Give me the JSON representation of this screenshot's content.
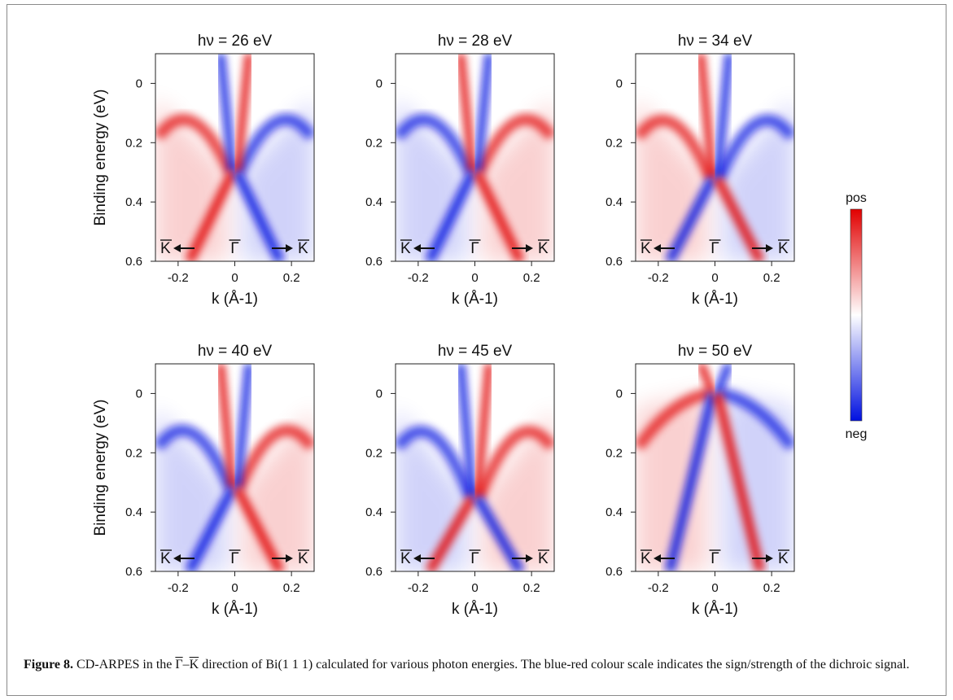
{
  "figure": {
    "caption": {
      "label": "Figure 8.",
      "pre": " CD-ARPES in the ",
      "sym1": "Γ",
      "dash": "–",
      "sym2": "K",
      "post": " direction of Bi(1 1 1) calculated for various photon energies. The blue-red colour scale indicates the sign/strength of the dichroic signal."
    }
  },
  "chart_data": [
    {
      "type": "heatmap",
      "title": "hν = 26 eV",
      "xlabel": "k (Å-1)",
      "ylabel": "Binding energy (eV)",
      "xlim": [
        -0.28,
        0.28
      ],
      "ylim": [
        -0.1,
        0.6
      ],
      "xticks": [
        "-0.2",
        "0",
        "0.2"
      ],
      "yticks": [
        "0",
        "0.2",
        "0.4",
        "0.6"
      ],
      "labels": {
        "left": "K",
        "center": "Γ",
        "right": "K"
      },
      "dirac_point_eV": 0.3,
      "inner_sign": 1,
      "outer_sign": 1
    },
    {
      "type": "heatmap",
      "title": "hν = 28 eV",
      "xlabel": "k (Å-1)",
      "ylabel": "",
      "xlim": [
        -0.28,
        0.28
      ],
      "ylim": [
        -0.1,
        0.6
      ],
      "xticks": [
        "-0.2",
        "0",
        "0.2"
      ],
      "yticks": [
        "0",
        "0.2",
        "0.4",
        "0.6"
      ],
      "labels": {
        "left": "K",
        "center": "Γ",
        "right": "K"
      },
      "dirac_point_eV": 0.3,
      "inner_sign": -1,
      "outer_sign": -1
    },
    {
      "type": "heatmap",
      "title": "hν = 34 eV",
      "xlabel": "k (Å-1)",
      "ylabel": "",
      "xlim": [
        -0.28,
        0.28
      ],
      "ylim": [
        -0.1,
        0.6
      ],
      "xticks": [
        "-0.2",
        "0",
        "0.2"
      ],
      "yticks": [
        "0",
        "0.2",
        "0.4",
        "0.6"
      ],
      "labels": {
        "left": "K",
        "center": "Γ",
        "right": "K"
      },
      "dirac_point_eV": 0.32,
      "inner_sign": -1,
      "outer_sign": 1
    },
    {
      "type": "heatmap",
      "title": "hν = 40 eV",
      "xlabel": "k (Å-1)",
      "ylabel": "Binding energy (eV)",
      "xlim": [
        -0.28,
        0.28
      ],
      "ylim": [
        -0.1,
        0.6
      ],
      "xticks": [
        "-0.2",
        "0",
        "0.2"
      ],
      "yticks": [
        "0",
        "0.2",
        "0.4",
        "0.6"
      ],
      "labels": {
        "left": "K",
        "center": "Γ",
        "right": "K"
      },
      "dirac_point_eV": 0.32,
      "inner_sign": -1,
      "outer_sign": -1
    },
    {
      "type": "heatmap",
      "title": "hν = 45 eV",
      "xlabel": "k (Å-1)",
      "ylabel": "",
      "xlim": [
        -0.28,
        0.28
      ],
      "ylim": [
        -0.1,
        0.6
      ],
      "xticks": [
        "-0.2",
        "0",
        "0.2"
      ],
      "yticks": [
        "0",
        "0.2",
        "0.4",
        "0.6"
      ],
      "labels": {
        "left": "K",
        "center": "Γ",
        "right": "K"
      },
      "dirac_point_eV": 0.35,
      "inner_sign": 1,
      "outer_sign": -1
    },
    {
      "type": "heatmap",
      "title": "hν = 50 eV",
      "xlabel": "k (Å-1)",
      "ylabel": "",
      "xlim": [
        -0.28,
        0.28
      ],
      "ylim": [
        -0.1,
        0.6
      ],
      "xticks": [
        "-0.2",
        "0",
        "0.2"
      ],
      "yticks": [
        "0",
        "0.2",
        "0.4",
        "0.6"
      ],
      "labels": {
        "left": "K",
        "center": "Γ",
        "right": "K"
      },
      "dirac_point_eV": 0.0,
      "inner_sign": -1,
      "outer_sign": 1
    }
  ],
  "colorbar": {
    "top_label": "pos",
    "bottom_label": "neg",
    "colors": [
      "#e10000",
      "#ffffff",
      "#0010e0"
    ]
  }
}
